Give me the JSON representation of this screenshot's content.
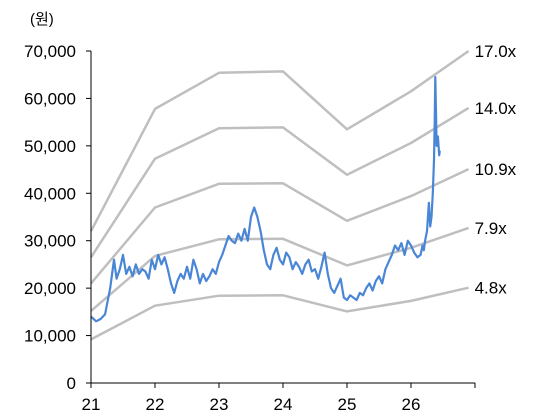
{
  "chart_data": {
    "type": "line",
    "unit_label": "(원)",
    "y_axis": {
      "min": 0,
      "max": 70000,
      "ticks": [
        0,
        10000,
        20000,
        30000,
        40000,
        50000,
        60000,
        70000
      ],
      "tick_labels": [
        "0",
        "10,000",
        "20,000",
        "30,000",
        "40,000",
        "50,000",
        "60,000",
        "70,000"
      ]
    },
    "x_axis": {
      "min": 21,
      "max": 27,
      "ticks": [
        21,
        22,
        23,
        24,
        25,
        26
      ],
      "tick_labels": [
        "21",
        "22",
        "23",
        "24",
        "25",
        "26"
      ]
    },
    "grid": false,
    "legend": "none",
    "colors": {
      "price_line": "#4a86d6",
      "band_lines": "#bfbfbf",
      "axis": "#000000"
    },
    "bands": [
      {
        "label": "17.0x",
        "points": [
          [
            21,
            32000
          ],
          [
            22,
            57800
          ],
          [
            23,
            65400
          ],
          [
            24,
            65700
          ],
          [
            25,
            53500
          ],
          [
            26,
            61500
          ],
          [
            26.9,
            70000
          ]
        ]
      },
      {
        "label": "14.0x",
        "points": [
          [
            21,
            26500
          ],
          [
            22,
            47300
          ],
          [
            23,
            53700
          ],
          [
            24,
            53900
          ],
          [
            25,
            43900
          ],
          [
            26,
            50600
          ],
          [
            26.9,
            58000
          ]
        ]
      },
      {
        "label": "10.9x",
        "points": [
          [
            21,
            21000
          ],
          [
            22,
            37000
          ],
          [
            23,
            42000
          ],
          [
            24,
            42100
          ],
          [
            25,
            34200
          ],
          [
            26,
            39400
          ],
          [
            26.9,
            45100
          ]
        ]
      },
      {
        "label": "7.9x",
        "points": [
          [
            21,
            15200
          ],
          [
            22,
            26800
          ],
          [
            23,
            30300
          ],
          [
            24,
            30400
          ],
          [
            25,
            24800
          ],
          [
            26,
            28500
          ],
          [
            26.9,
            32700
          ]
        ]
      },
      {
        "label": "4.8x",
        "points": [
          [
            21,
            9200
          ],
          [
            22,
            16300
          ],
          [
            23,
            18400
          ],
          [
            24,
            18500
          ],
          [
            25,
            15100
          ],
          [
            26,
            17300
          ],
          [
            26.9,
            20100
          ]
        ]
      }
    ],
    "series": [
      {
        "x": [
          21.0,
          21.08,
          21.15,
          21.22,
          21.3,
          21.36,
          21.4,
          21.45,
          21.5,
          21.55,
          21.6,
          21.65,
          21.7,
          21.75,
          21.8,
          21.85,
          21.9,
          21.95,
          22.0,
          22.05,
          22.1,
          22.15,
          22.2,
          22.25,
          22.3,
          22.35,
          22.4,
          22.45,
          22.5,
          22.55,
          22.6,
          22.65,
          22.7,
          22.75,
          22.8,
          22.85,
          22.9,
          22.95,
          23.0,
          23.05,
          23.1,
          23.15,
          23.2,
          23.25,
          23.3,
          23.35,
          23.4,
          23.45,
          23.5,
          23.55,
          23.6,
          23.65,
          23.7,
          23.75,
          23.8,
          23.85,
          23.9,
          23.95,
          24.0,
          24.05,
          24.1,
          24.15,
          24.2,
          24.25,
          24.3,
          24.35,
          24.4,
          24.45,
          24.5,
          24.55,
          24.6,
          24.65,
          24.7,
          24.75,
          24.8,
          24.85,
          24.9,
          24.95,
          25.0,
          25.05,
          25.1,
          25.15,
          25.2,
          25.25,
          25.3,
          25.35,
          25.4,
          25.45,
          25.5,
          25.55,
          25.6,
          25.65,
          25.7,
          25.75,
          25.8,
          25.85,
          25.9,
          25.95,
          26.0,
          26.05,
          26.1,
          26.15,
          26.18,
          26.2,
          26.22,
          26.25,
          26.28,
          26.3,
          26.32,
          26.34,
          26.36,
          26.37,
          26.38,
          26.39,
          26.4,
          26.42,
          26.44,
          26.45
        ],
        "y": [
          14000,
          13000,
          13500,
          14500,
          20000,
          26000,
          22000,
          24000,
          27000,
          23000,
          24500,
          22500,
          25000,
          23000,
          24000,
          23500,
          22000,
          26000,
          24000,
          27000,
          25000,
          26500,
          24000,
          21000,
          19000,
          21500,
          23000,
          22000,
          24500,
          22000,
          26000,
          24000,
          21000,
          23000,
          21500,
          22500,
          24000,
          23000,
          25500,
          27000,
          29000,
          31000,
          30000,
          29500,
          31500,
          30000,
          32500,
          30000,
          35000,
          37000,
          35000,
          32000,
          28000,
          25000,
          24000,
          27000,
          28500,
          26000,
          25000,
          27500,
          26500,
          24000,
          25500,
          24500,
          23000,
          25000,
          26000,
          23500,
          24000,
          22000,
          24500,
          27500,
          23000,
          20000,
          19000,
          20500,
          22000,
          18000,
          17500,
          18500,
          18000,
          17500,
          19000,
          18500,
          20000,
          21000,
          19500,
          21500,
          22500,
          21000,
          24000,
          25500,
          27000,
          29000,
          28000,
          29500,
          27000,
          30000,
          29000,
          27500,
          26500,
          27000,
          29000,
          28000,
          30000,
          32000,
          38000,
          33000,
          35000,
          40000,
          47000,
          55000,
          64500,
          57000,
          50000,
          52000,
          48000,
          49000
        ],
        "color": "#4a86d6"
      }
    ]
  }
}
